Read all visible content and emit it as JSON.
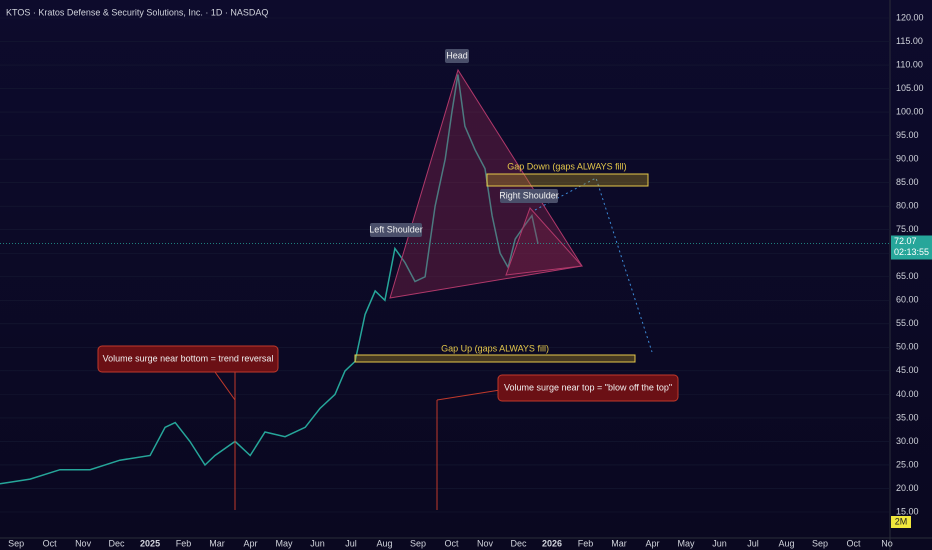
{
  "chart_data": {
    "type": "line",
    "title": "KTOS · Kratos Defense & Security Solutions, Inc. · 1D · NASDAQ",
    "x": [
      -0.48,
      0.42,
      1.31,
      2.21,
      3.1,
      4.0,
      4.45,
      4.75,
      5.19,
      5.64,
      5.94,
      6.54,
      6.99,
      7.43,
      8.03,
      8.63,
      9.07,
      9.52,
      9.82,
      10.12,
      10.42,
      10.72,
      11.01,
      11.31,
      11.61,
      11.91,
      12.21,
      12.51,
      12.81,
      13.01,
      13.19,
      13.4,
      13.7,
      14.0,
      14.21,
      14.45,
      14.69,
      14.9,
      15.19,
      15.4,
      15.58
    ],
    "series": [
      {
        "name": "KTOS",
        "color": "#26a69a",
        "values": [
          21,
          22,
          24,
          24,
          26,
          27,
          33,
          34,
          30,
          25,
          27,
          30,
          27,
          32,
          31,
          33,
          37,
          40,
          45,
          47,
          57,
          62,
          60,
          71,
          68,
          64,
          65,
          80,
          90,
          100,
          108,
          97,
          92,
          88,
          78,
          70,
          67,
          73,
          76,
          78,
          72
        ]
      }
    ],
    "xlim": [
      -0.48,
      26.09
    ],
    "xticks": [
      {
        "value": 0,
        "label": "Sep"
      },
      {
        "value": 1,
        "label": "Oct"
      },
      {
        "value": 2,
        "label": "Nov"
      },
      {
        "value": 3,
        "label": "Dec"
      },
      {
        "value": 4,
        "label": "2025"
      },
      {
        "value": 5,
        "label": "Feb"
      },
      {
        "value": 6,
        "label": "Mar"
      },
      {
        "value": 7,
        "label": "Apr"
      },
      {
        "value": 8,
        "label": "May"
      },
      {
        "value": 9,
        "label": "Jun"
      },
      {
        "value": 10,
        "label": "Jul"
      },
      {
        "value": 11,
        "label": "Aug"
      },
      {
        "value": 12,
        "label": "Sep"
      },
      {
        "value": 13,
        "label": "Oct"
      },
      {
        "value": 14,
        "label": "Nov"
      },
      {
        "value": 15,
        "label": "Dec"
      },
      {
        "value": 16,
        "label": "2026"
      },
      {
        "value": 17,
        "label": "Feb"
      },
      {
        "value": 18,
        "label": "Mar"
      },
      {
        "value": 19,
        "label": "Apr"
      },
      {
        "value": 20,
        "label": "May"
      },
      {
        "value": 21,
        "label": "Jun"
      },
      {
        "value": 22,
        "label": "Jul"
      },
      {
        "value": 23,
        "label": "Aug"
      },
      {
        "value": 24,
        "label": "Sep"
      },
      {
        "value": 25,
        "label": "Oct"
      },
      {
        "value": 26,
        "label": "No"
      }
    ],
    "ylim": [
      15,
      120
    ],
    "yticks": [
      {
        "value": 120,
        "label": "120.00"
      },
      {
        "value": 115,
        "label": "115.00"
      },
      {
        "value": 110,
        "label": "110.00"
      },
      {
        "value": 105,
        "label": "105.00"
      },
      {
        "value": 100,
        "label": "100.00"
      },
      {
        "value": 95,
        "label": "95.00"
      },
      {
        "value": 90,
        "label": "90.00"
      },
      {
        "value": 85,
        "label": "85.00"
      },
      {
        "value": 80,
        "label": "80.00"
      },
      {
        "value": 75,
        "label": "75.00"
      },
      {
        "value": 70,
        "label": "70.00"
      },
      {
        "value": 65,
        "label": "65.00"
      },
      {
        "value": 60,
        "label": "60.00"
      },
      {
        "value": 55,
        "label": "55.00"
      },
      {
        "value": 50,
        "label": "50.00"
      },
      {
        "value": 45,
        "label": "45.00"
      },
      {
        "value": 40,
        "label": "40.00"
      },
      {
        "value": 35,
        "label": "35.00"
      },
      {
        "value": 30,
        "label": "30.00"
      },
      {
        "value": 25,
        "label": "25.00"
      },
      {
        "value": 20,
        "label": "20.00"
      },
      {
        "value": 15,
        "label": "15.00"
      }
    ],
    "last_price": 72.07,
    "last_price_label": "72.07",
    "countdown": "02:13:55",
    "volume_scale_label": "2M",
    "annotations": {
      "head": "Head",
      "left_shoulder": "Left Shoulder",
      "right_shoulder": "Right Shoulder",
      "gap_down": "Gap Down (gaps ALWAYS fill)",
      "gap_up": "Gap Up (gaps ALWAYS fill)",
      "volume_bottom": "Volume surge near bottom =  trend reversal",
      "volume_top": "Volume surge near top =  \"blow off the top\""
    }
  }
}
